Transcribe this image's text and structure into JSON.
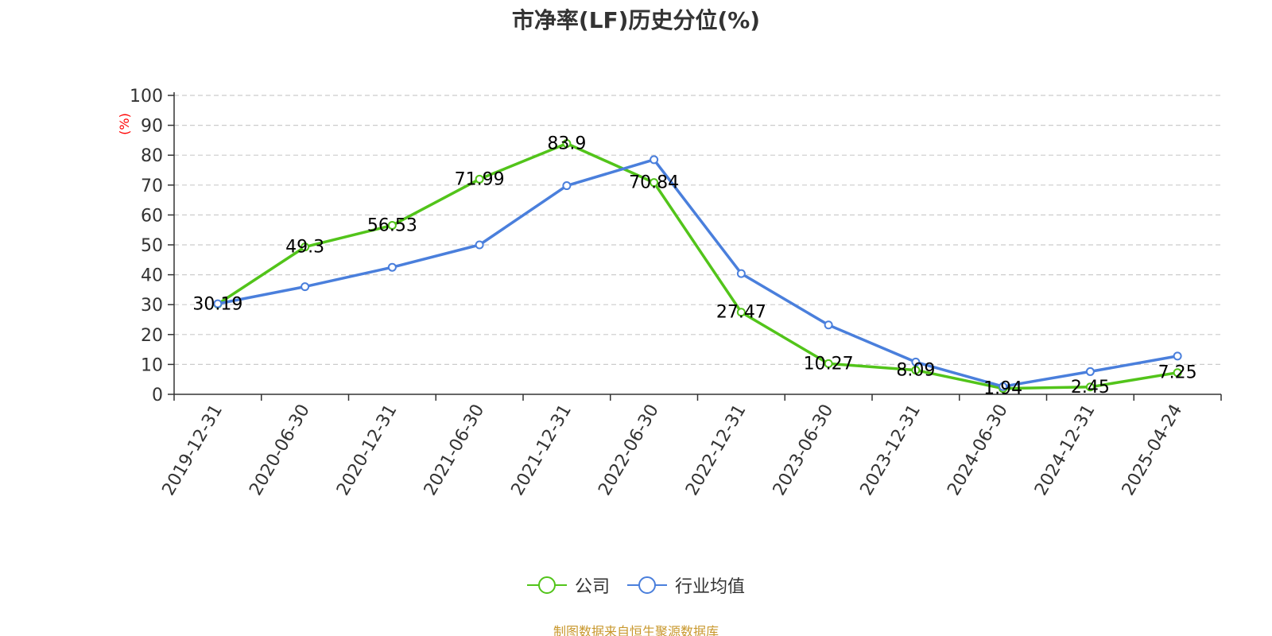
{
  "chart_data": {
    "type": "line",
    "title": "市净率(LF)历史分位(%)",
    "ylabel": "(%)",
    "ylim": [
      0,
      100
    ],
    "yticks": [
      0,
      10,
      20,
      30,
      40,
      50,
      60,
      70,
      80,
      90,
      100
    ],
    "grid": true,
    "legend_position": "bottom",
    "categories": [
      "2019-12-31",
      "2020-06-30",
      "2020-12-31",
      "2021-06-30",
      "2021-12-31",
      "2022-06-30",
      "2022-12-31",
      "2023-06-30",
      "2023-12-31",
      "2024-06-30",
      "2024-12-31",
      "2025-04-24"
    ],
    "series": [
      {
        "name": "公司",
        "color": "#52c41a",
        "values": [
          30.19,
          49.3,
          56.53,
          71.99,
          83.9,
          70.84,
          27.47,
          10.27,
          8.09,
          1.94,
          2.45,
          7.25
        ],
        "value_labels": [
          "30.19",
          "49.3",
          "56.53",
          "71.99",
          "83.9",
          "70.84",
          "27.47",
          "10.27",
          "8.09",
          "1.94",
          "2.45",
          "7.25"
        ]
      },
      {
        "name": "行业均值",
        "color": "#4a7fdc",
        "values": [
          30.3,
          36.0,
          42.5,
          50.0,
          69.8,
          78.5,
          40.4,
          23.2,
          10.8,
          2.6,
          7.6,
          12.8
        ]
      }
    ],
    "source_note": "制图数据来自恒生聚源数据库"
  }
}
